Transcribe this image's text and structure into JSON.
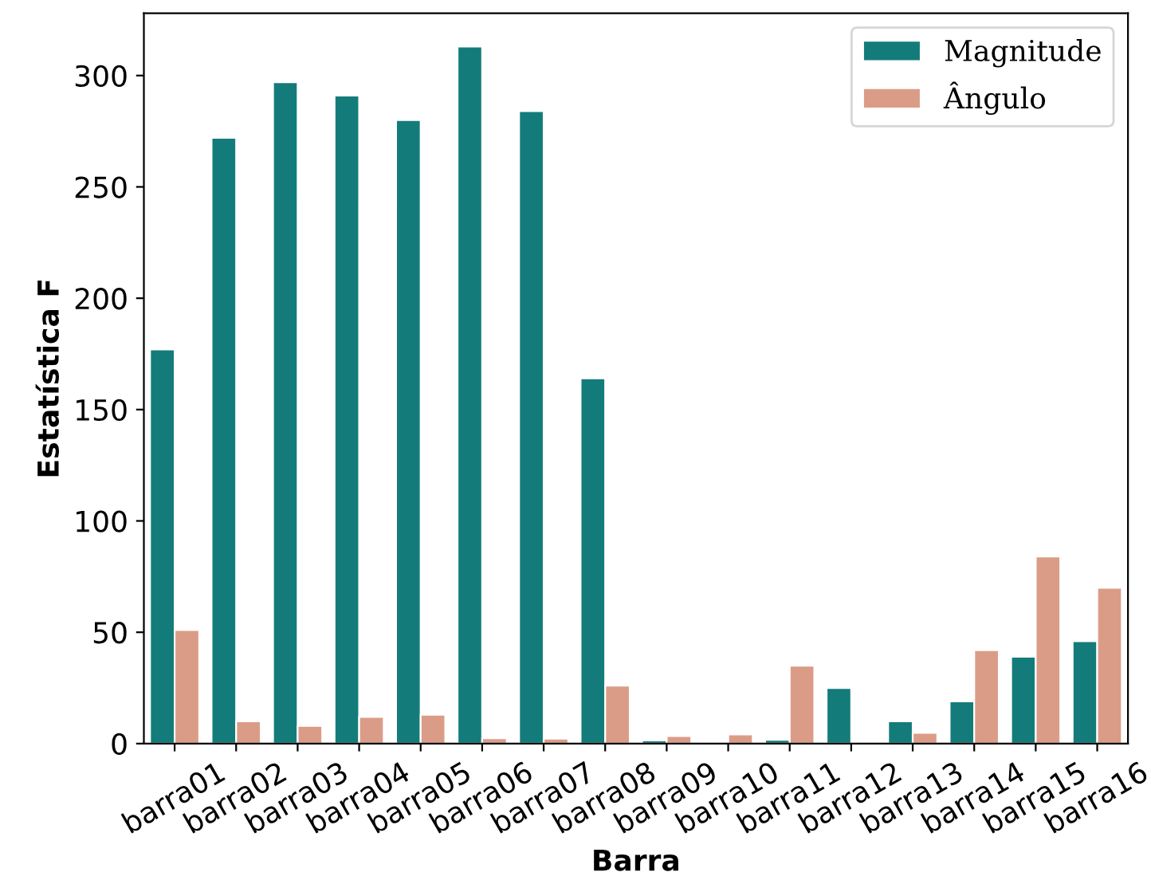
{
  "chart_data": {
    "type": "bar",
    "xlabel": "Barra",
    "ylabel": "Estatística F",
    "categories": [
      "barra01",
      "barra02",
      "barra03",
      "barra04",
      "barra05",
      "barra06",
      "barra07",
      "barra08",
      "barra09",
      "barra10",
      "barra11",
      "barra12",
      "barra13",
      "barra14",
      "barra15",
      "barra16"
    ],
    "series": [
      {
        "name": "Magnitude",
        "color": "#137c7a",
        "values": [
          177,
          272,
          297,
          291,
          280,
          313,
          284,
          164,
          1.4,
          null,
          1.7,
          25,
          10,
          19,
          39,
          46
        ]
      },
      {
        "name": "Ângulo",
        "color": "#db9c87",
        "values": [
          51,
          10,
          8,
          12,
          13,
          2.4,
          2.2,
          26,
          3.4,
          4.1,
          35,
          null,
          4.8,
          42,
          84,
          70
        ]
      }
    ],
    "ylim": [
      0,
      328
    ],
    "yticks": [
      0,
      50,
      100,
      150,
      200,
      250,
      300
    ],
    "grid": false,
    "legend": "top right"
  }
}
